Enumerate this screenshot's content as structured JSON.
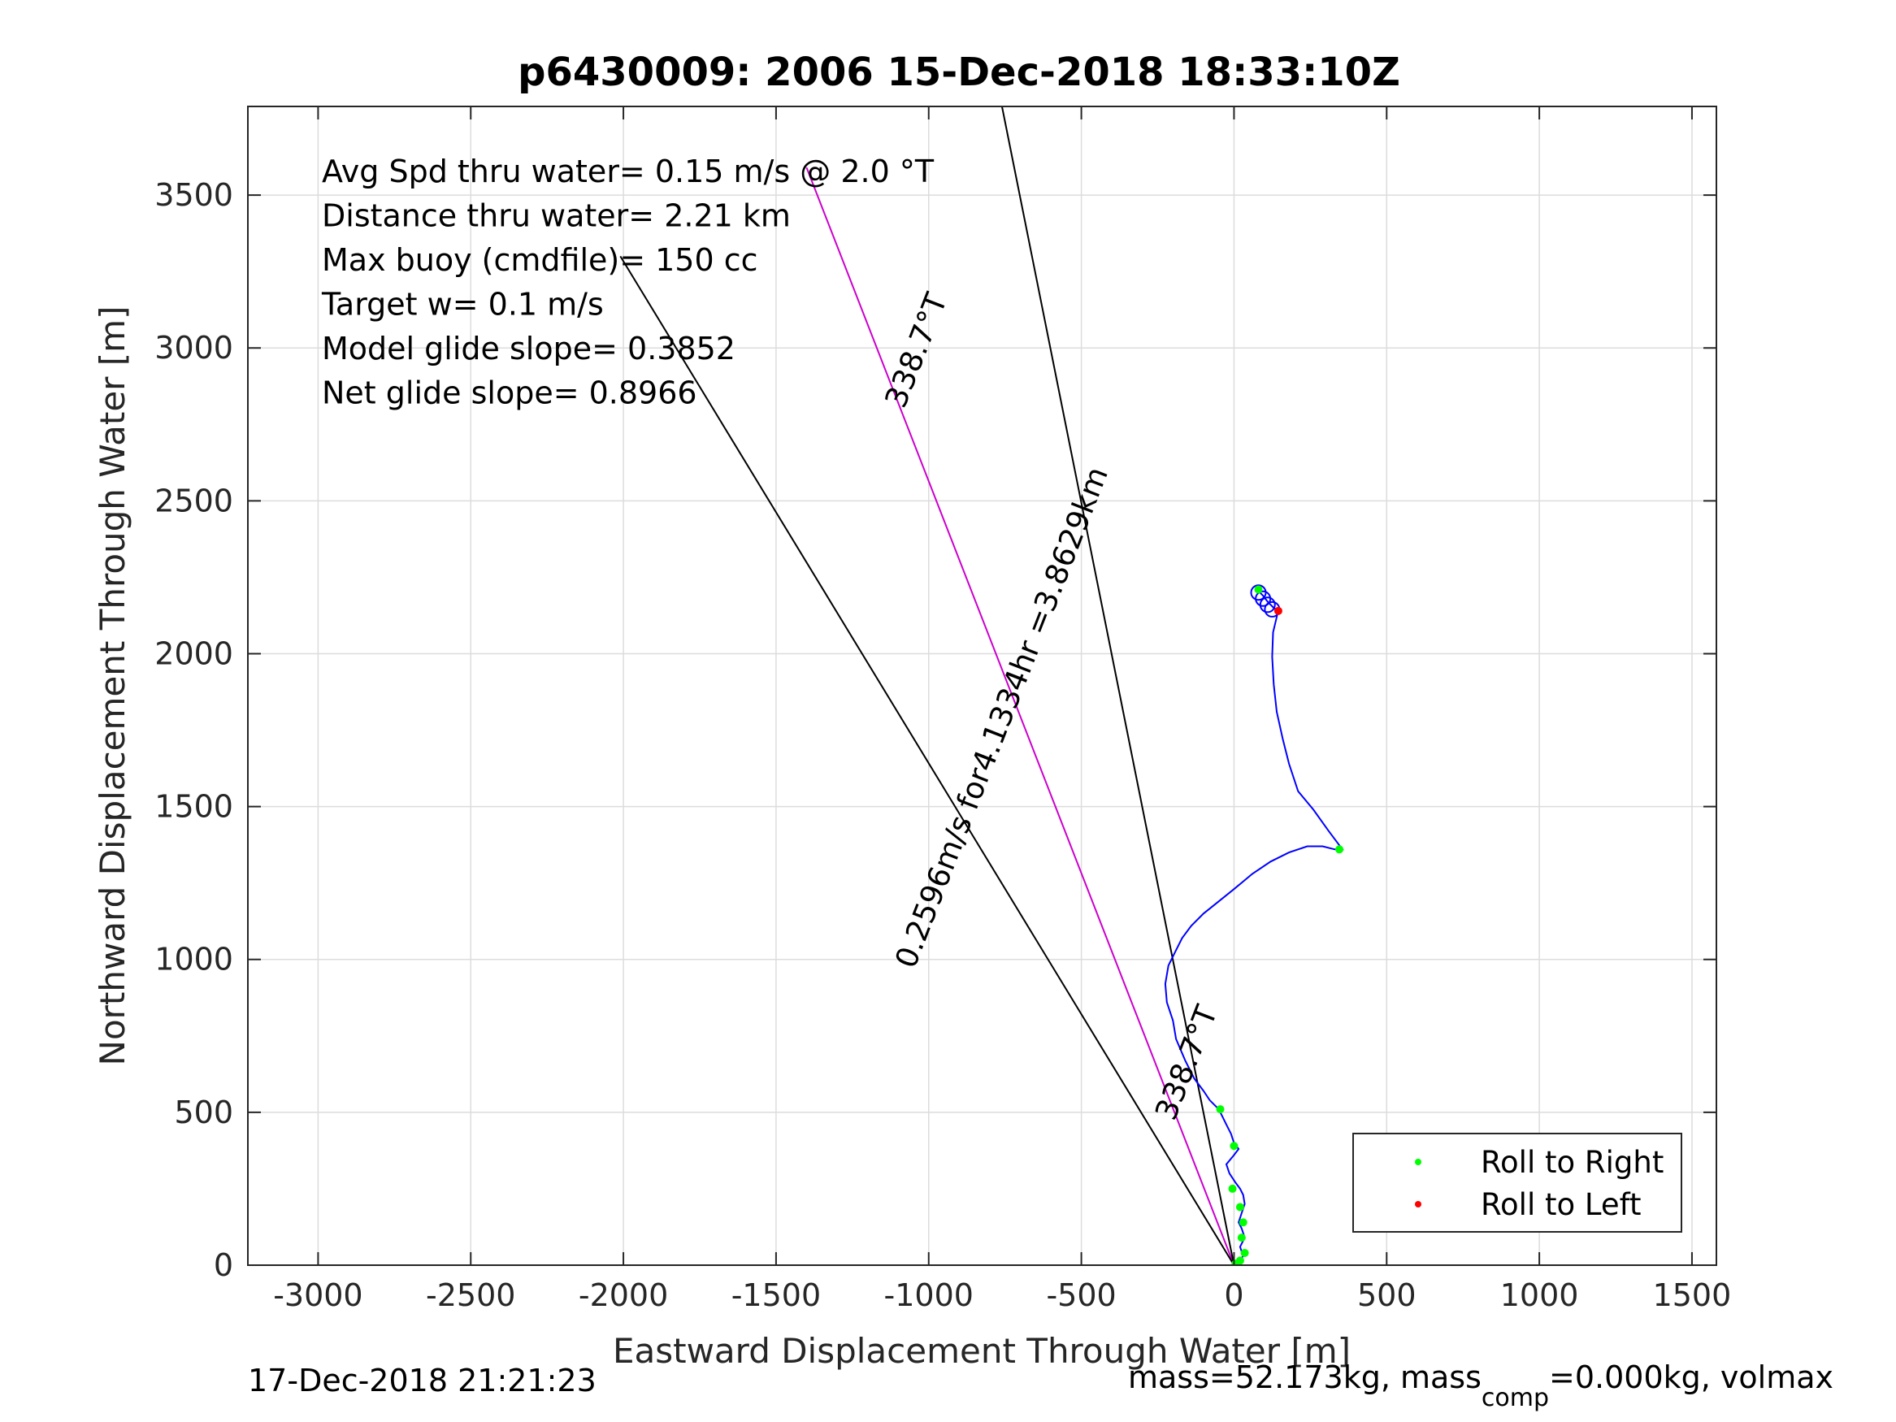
{
  "chart_data": {
    "type": "line",
    "title": "p6430009:  2006 15-Dec-2018 18:33:10Z",
    "xlabel": "Eastward Displacement Through Water [m]",
    "ylabel": "Northward Displacement Through Water [m]",
    "xlim": [
      -3230,
      1580
    ],
    "ylim": [
      0,
      3790
    ],
    "xticks": [
      -3000,
      -2500,
      -2000,
      -1500,
      -1000,
      -500,
      0,
      500,
      1000,
      1500
    ],
    "yticks": [
      0,
      500,
      1000,
      1500,
      2000,
      2500,
      3000,
      3500
    ],
    "grid": true,
    "info_lines": [
      "Avg Spd thru water=  0.15 m/s @   2.0 °T",
      "Distance thru water=  2.21 km",
      "Max buoy (cmdfile)= 150 cc",
      "Target w= 0.1 m/s",
      "Model glide slope= 0.3852",
      "Net glide slope= 0.8966"
    ],
    "reference_lines": [
      {
        "name": "heading-magenta",
        "color": "#cc00cc",
        "x": [
          0,
          -1400
        ],
        "y": [
          0,
          3590
        ]
      },
      {
        "name": "envelope-left",
        "color": "#000000",
        "x": [
          0,
          -2010
        ],
        "y": [
          0,
          3300
        ]
      },
      {
        "name": "envelope-right",
        "color": "#000000",
        "x": [
          0,
          -760
        ],
        "y": [
          0,
          3790
        ]
      }
    ],
    "line_labels": [
      {
        "text": "338.7°T",
        "x": -1010,
        "y": 2980,
        "angle": -68.7
      },
      {
        "text": "0.2596m/s for4.1334hr =3.8629km",
        "x": -730,
        "y": 1780,
        "angle": -68.7
      },
      {
        "text": "338.7°T",
        "x": -125,
        "y": 650,
        "angle": -68.7
      }
    ],
    "track": {
      "color": "#0000ff",
      "x": [
        0,
        15,
        30,
        20,
        35,
        25,
        15,
        25,
        35,
        30,
        20,
        5,
        -15,
        -25,
        0,
        15,
        0,
        -10,
        -25,
        -40,
        -50,
        -60,
        -80,
        -100,
        -130,
        -160,
        -190,
        -200,
        -220,
        -225,
        -215,
        -195,
        -170,
        -140,
        -100,
        -50,
        0,
        60,
        120,
        180,
        240,
        290,
        330,
        355,
        310,
        260,
        210,
        180,
        160,
        140,
        130,
        125,
        128,
        140,
        145,
        130,
        110,
        95,
        85,
        80
      ],
      "y": [
        0,
        10,
        30,
        60,
        90,
        120,
        140,
        170,
        200,
        230,
        250,
        270,
        300,
        330,
        360,
        380,
        400,
        430,
        460,
        490,
        510,
        520,
        540,
        570,
        610,
        670,
        740,
        800,
        860,
        920,
        980,
        1020,
        1070,
        1110,
        1150,
        1190,
        1230,
        1280,
        1320,
        1350,
        1370,
        1370,
        1360,
        1360,
        1420,
        1490,
        1550,
        1640,
        1720,
        1810,
        1900,
        1990,
        2070,
        2120,
        2140,
        2150,
        2170,
        2190,
        2200,
        2210
      ]
    },
    "roll_right_points": {
      "color": "#00ff00",
      "x": [
        5,
        20,
        35,
        25,
        30,
        20,
        -5,
        0,
        -45,
        345,
        80
      ],
      "y": [
        5,
        15,
        40,
        90,
        140,
        190,
        250,
        390,
        510,
        1360,
        2210
      ]
    },
    "roll_left_points": {
      "color": "#ff0000",
      "x": [
        145
      ],
      "y": [
        2140
      ]
    },
    "legend": {
      "position": "bottom-right",
      "entries": [
        {
          "label": "Roll to Right",
          "color": "#00ff00"
        },
        {
          "label": "Roll to Left",
          "color": "#ff0000"
        }
      ]
    },
    "footer_left": "17-Dec-2018 21:21:23",
    "footer_right_pre": "mass=52.173kg, mass",
    "footer_right_sub": "comp",
    "footer_right_post": "=0.000kg, volmax"
  }
}
